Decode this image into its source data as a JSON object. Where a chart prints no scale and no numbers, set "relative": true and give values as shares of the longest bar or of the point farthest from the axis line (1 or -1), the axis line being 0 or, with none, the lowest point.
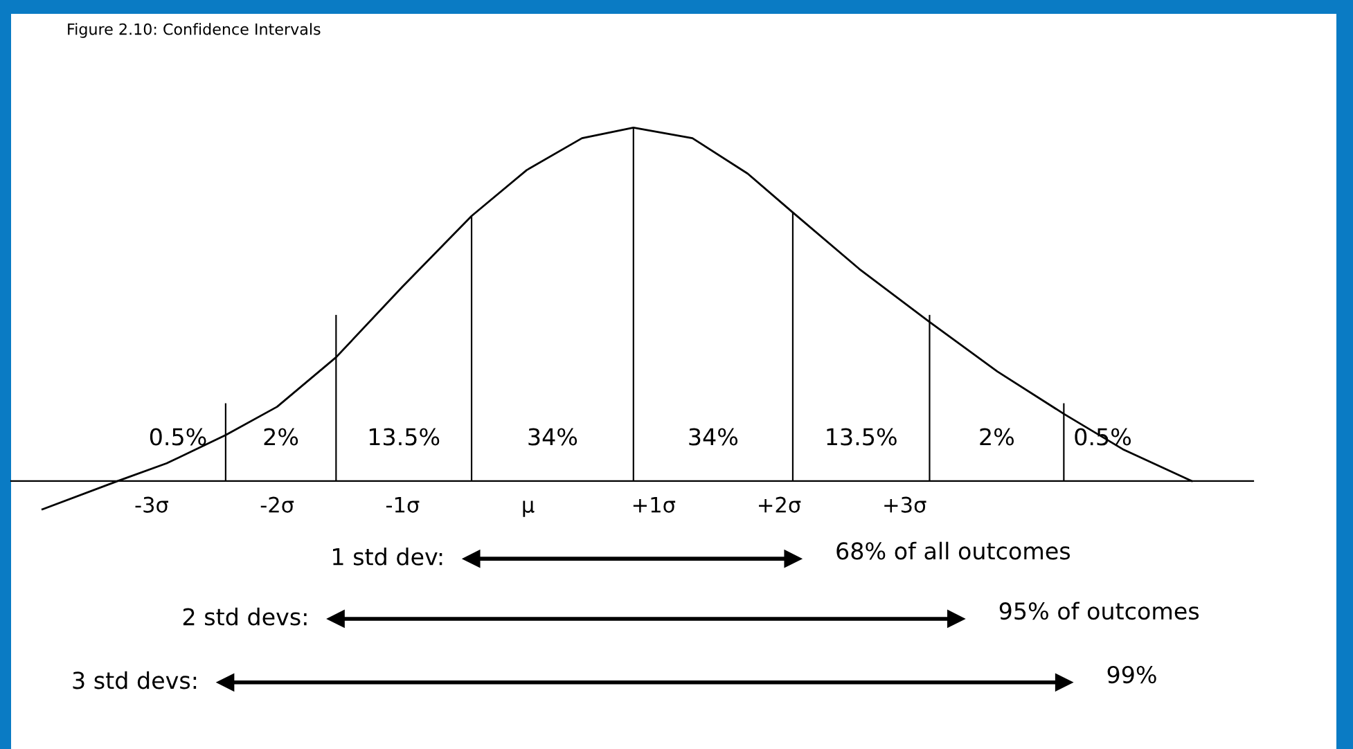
{
  "chart_data": {
    "type": "line",
    "title": "Figure 2.10: Confidence Intervals",
    "relative": true,
    "xlim": [
      -4.12,
      5.78
    ],
    "xticks": [
      {
        "value": -3,
        "label": "-3σ"
      },
      {
        "value": -2,
        "label": "-2σ"
      },
      {
        "value": -1,
        "label": "-1σ"
      },
      {
        "value": 0,
        "label": "μ"
      },
      {
        "value": 1,
        "label": "+1σ"
      },
      {
        "value": 2,
        "label": "+2σ"
      },
      {
        "value": 3,
        "label": "+3σ"
      }
    ],
    "series": [
      {
        "color": "#000000",
        "x": [
          -3.87,
          -3.27,
          -2.88,
          -2.41,
          -2.0,
          -1.53,
          -1.0,
          -0.45,
          -0.01,
          0.43,
          0.84,
          1.31,
          1.75,
          2.11,
          2.64,
          3.2,
          3.74,
          4.27,
          4.74,
          5.29
        ],
        "values": [
          -0.08,
          0,
          0.05,
          0.13,
          0.21,
          0.35,
          0.55,
          0.75,
          0.88,
          0.97,
          1,
          0.97,
          0.87,
          0.76,
          0.6,
          0.45,
          0.31,
          0.19,
          0.09,
          0
        ]
      },
      {
        "type": "bar",
        "color": "#000000",
        "x": [
          -2.41,
          -1.53,
          -0.45,
          0.84,
          2.11,
          3.2,
          4.27
        ],
        "values": [
          0.22,
          0.47,
          0.75,
          1.0,
          0.76,
          0.47,
          0.22
        ]
      },
      {
        "type": "line",
        "name": "1 std dev:",
        "color": "#000000",
        "marker": "triangle",
        "x": [
          -0.45,
          2.11
        ],
        "values": [
          -0.22,
          -0.22
        ]
      },
      {
        "type": "line",
        "name": "2 std devs:",
        "color": "#000000",
        "marker": "triangle",
        "x": [
          -1.53,
          3.41
        ],
        "values": [
          -0.39,
          -0.39
        ]
      },
      {
        "type": "line",
        "name": "3 std devs:",
        "color": "#000000",
        "marker": "triangle",
        "x": [
          -2.41,
          4.27
        ],
        "values": [
          -0.57,
          -0.57
        ]
      }
    ],
    "annotations": [
      "0.5%",
      "2%",
      "13.5%",
      "34%",
      "34%",
      "13.5%",
      "2%",
      "0.5%",
      "68% of all outcomes",
      "95% of outcomes",
      "99%"
    ]
  }
}
